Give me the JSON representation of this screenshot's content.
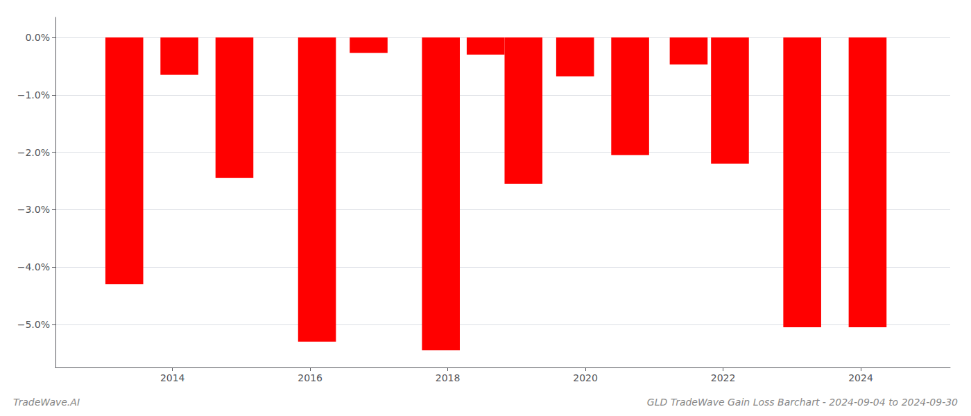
{
  "chart_data": {
    "type": "bar",
    "title": "GLD TradeWave Gain Loss Barchart - 2024-09-04 to 2024-09-30",
    "annotations": [
      "TradeWave.AI"
    ],
    "x": [
      2013.3,
      2014.1,
      2014.9,
      2016.1,
      2016.85,
      2017.9,
      2018.55,
      2019.1,
      2019.85,
      2020.65,
      2021.5,
      2022.1,
      2023.15,
      2024.1
    ],
    "values": [
      -4.3,
      -0.65,
      -2.45,
      -5.3,
      -0.27,
      -5.45,
      -0.3,
      -2.55,
      -0.68,
      -2.05,
      -0.47,
      -2.2,
      -5.05,
      -5.05
    ],
    "color": "#ff0000",
    "xlim": [
      2012.3,
      2025.3
    ],
    "xticks": [
      2014,
      2016,
      2018,
      2020,
      2022,
      2024
    ],
    "ylim": [
      -5.75,
      0.35
    ],
    "yticks": [
      {
        "value": 0.0,
        "label": "0.0%"
      },
      {
        "value": -1.0,
        "label": "−1.0%"
      },
      {
        "value": -2.0,
        "label": "−2.0%"
      },
      {
        "value": -3.0,
        "label": "−3.0%"
      },
      {
        "value": -4.0,
        "label": "−4.0%"
      },
      {
        "value": -5.0,
        "label": "−5.0%"
      }
    ],
    "grid": true
  }
}
